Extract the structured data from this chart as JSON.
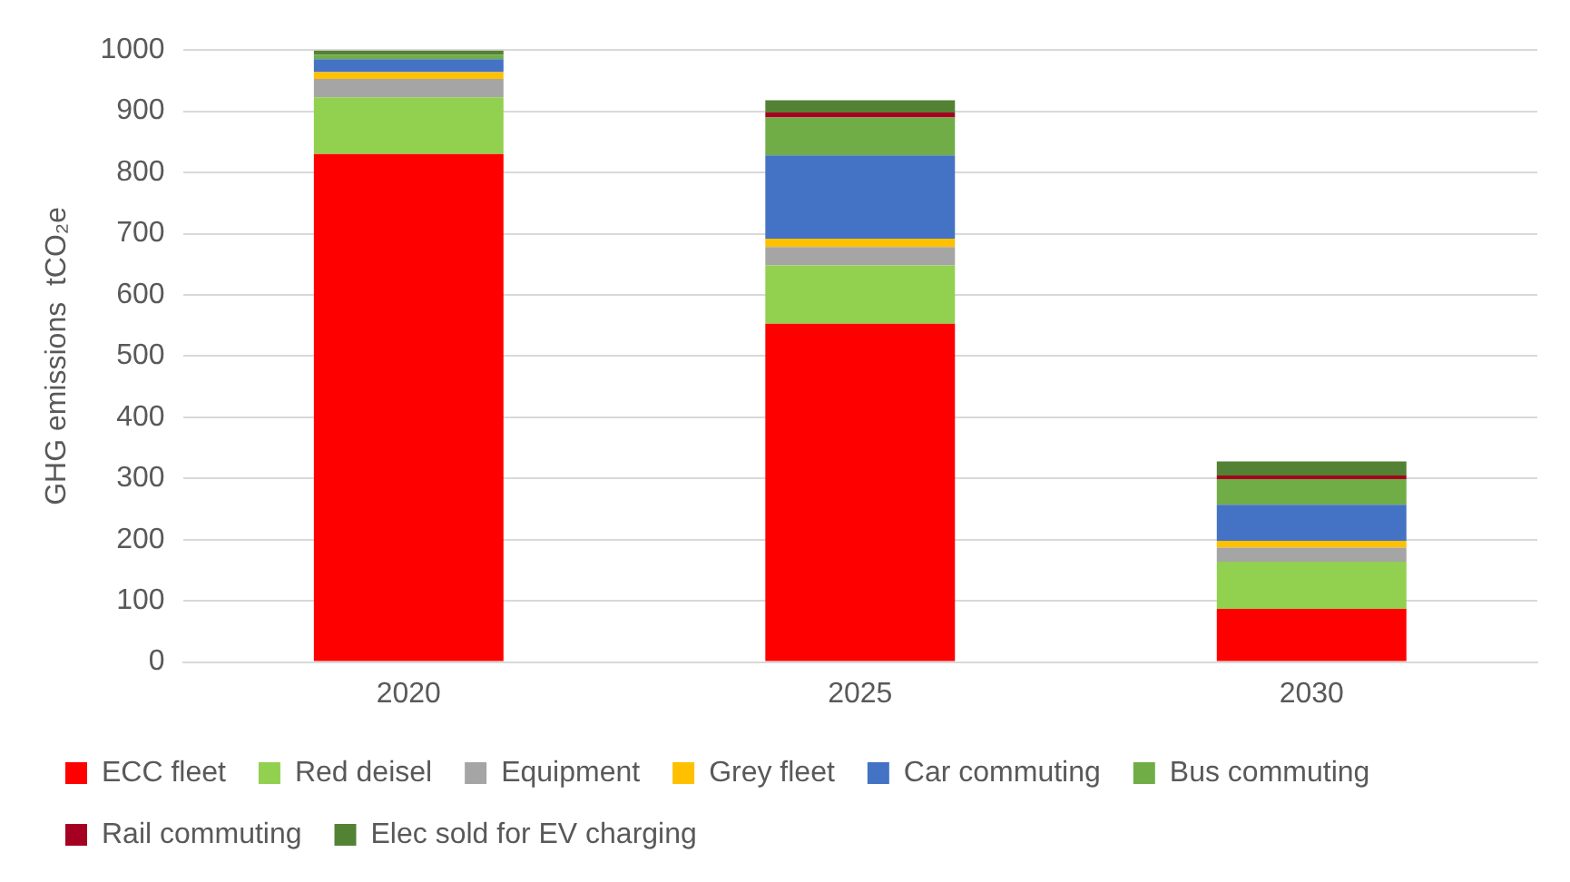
{
  "chart_data": {
    "type": "bar",
    "stacked": true,
    "ylabel": "GHG emissions  tCO₂e",
    "categories": [
      "2020",
      "2025",
      "2030"
    ],
    "series": [
      {
        "name": "ECC fleet",
        "color": "#ff0000",
        "values": [
          830,
          553,
          87
        ]
      },
      {
        "name": "Red deisel",
        "color": "#92d050",
        "values": [
          93,
          95,
          77
        ]
      },
      {
        "name": "Equipment",
        "color": "#a5a5a5",
        "values": [
          30,
          30,
          23
        ]
      },
      {
        "name": "Grey fleet",
        "color": "#ffc000",
        "values": [
          11,
          14,
          11
        ]
      },
      {
        "name": "Car commuting",
        "color": "#4472c4",
        "values": [
          21,
          136,
          59
        ]
      },
      {
        "name": "Bus commuting",
        "color": "#70ad47",
        "values": [
          7,
          62,
          42
        ]
      },
      {
        "name": "Rail commuting",
        "color": "#a50021",
        "values": [
          null,
          8,
          6
        ]
      },
      {
        "name": "Elec sold for EV charging",
        "color": "#548235",
        "values": [
          7,
          20,
          23
        ]
      }
    ],
    "ylim": [
      0,
      1000
    ],
    "yticks": [
      0,
      100,
      200,
      300,
      400,
      500,
      600,
      700,
      800,
      900,
      1000
    ],
    "grid": "y",
    "legend": "bottom"
  }
}
